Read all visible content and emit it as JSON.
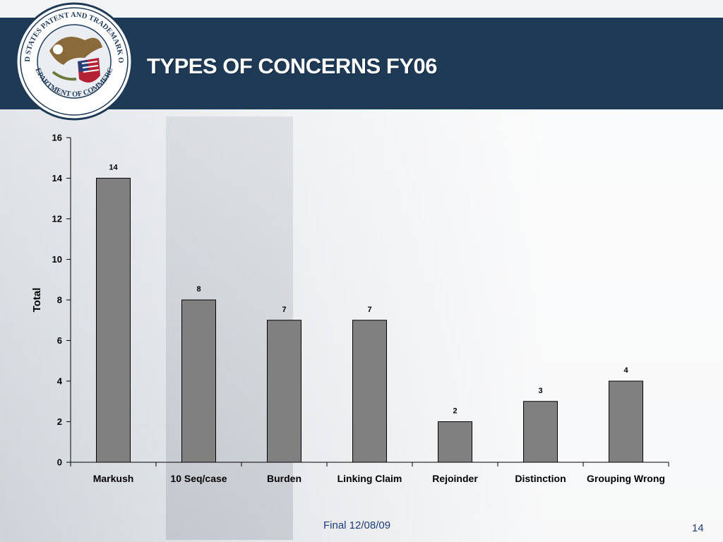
{
  "slide": {
    "title": "TYPES OF CONCERNS FY06",
    "footer": "Final 12/08/09",
    "page_number": "14"
  },
  "seal": {
    "text_top": "UNITED STATES PATENT AND TRADEMARK OFFICE",
    "text_bottom": "DEPARTMENT OF COMMERCE",
    "colors": {
      "ring": "#ffffff",
      "eagle": "#8a6a3a",
      "shield_red": "#b22234",
      "shield_blue": "#2a3f7a"
    }
  },
  "chart_data": {
    "type": "bar",
    "categories": [
      "Markush",
      "10 Seq/case",
      "Burden",
      "Linking Claim",
      "Rejoinder",
      "Distinction",
      "Grouping Wrong"
    ],
    "values": [
      14,
      8,
      7,
      7,
      2,
      3,
      4
    ],
    "ylabel": "Total",
    "xlabel": "",
    "ylim": [
      0,
      16
    ],
    "yticks": [
      0,
      2,
      4,
      6,
      8,
      10,
      12,
      14,
      16
    ],
    "grid": false,
    "legend": "none",
    "bar_color": "#808080"
  }
}
